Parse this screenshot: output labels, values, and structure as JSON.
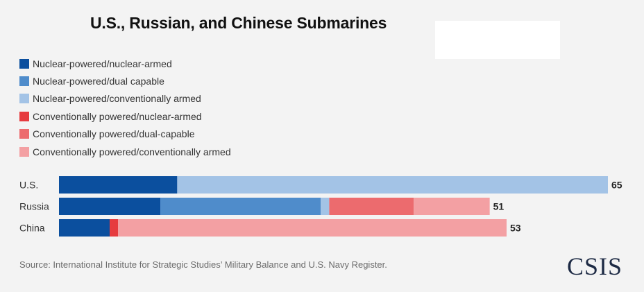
{
  "title": "U.S., Russian, and Chinese Submarines",
  "source": "Source: International Institute for Strategic Studies’ Military Balance and U.S. Navy Register.",
  "logo_text": "CSIS",
  "chart_data": {
    "type": "bar",
    "orientation": "horizontal",
    "stacked": true,
    "title": "U.S., Russian, and Chinese Submarines",
    "categories": [
      "U.S.",
      "Russia",
      "China"
    ],
    "totals": [
      65,
      51,
      53
    ],
    "legend_placement": "top-left",
    "grid": false,
    "xlim": [
      0,
      65
    ],
    "series": [
      {
        "name": "Nuclear-powered/nuclear-armed",
        "color": "#0b4f9e",
        "values": [
          14,
          12,
          6
        ]
      },
      {
        "name": "Nuclear-powered/dual capable",
        "color": "#4f8ccb",
        "values": [
          0,
          19,
          0
        ]
      },
      {
        "name": "Nuclear-powered/conventionally armed",
        "color": "#a3c3e6",
        "values": [
          51,
          1,
          0
        ]
      },
      {
        "name": "Conventionally powered/nuclear-armed",
        "color": "#e63b3f",
        "values": [
          0,
          0,
          1
        ]
      },
      {
        "name": "Conventionally powered/dual-capable",
        "color": "#ec6b6e",
        "values": [
          0,
          10,
          0
        ]
      },
      {
        "name": "Conventionally powered/conventionally armed",
        "color": "#f3a0a3",
        "values": [
          0,
          9,
          46
        ]
      }
    ]
  }
}
